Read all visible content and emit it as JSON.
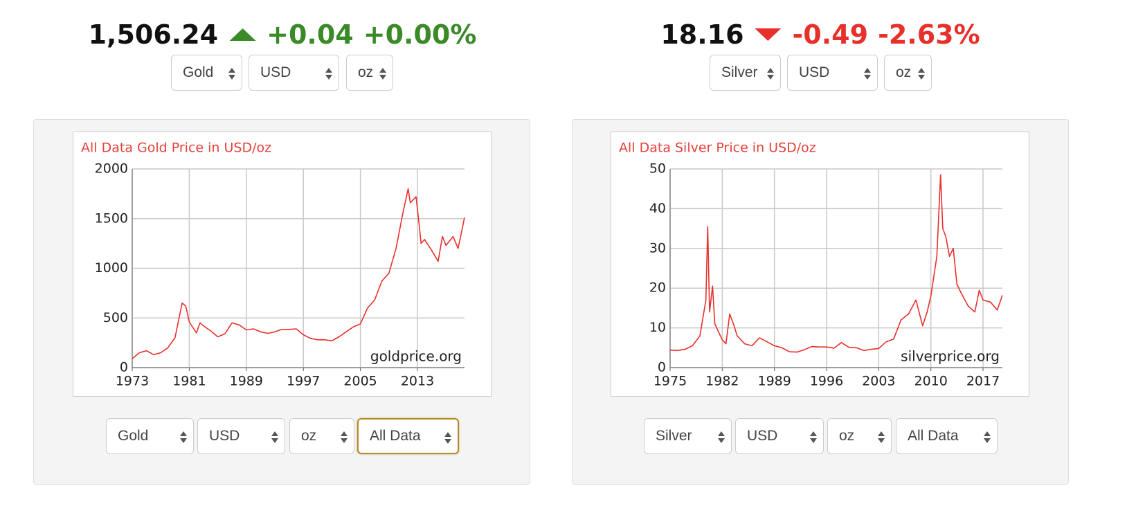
{
  "widgets": [
    {
      "price": "1,506.24",
      "change": "+0.04",
      "change_pct": "+0.00%",
      "trend_color": "#3a8a28",
      "selects": [
        "Gold",
        "USD",
        "oz"
      ],
      "controls": [
        "Gold",
        "USD",
        "oz",
        "All Data"
      ]
    },
    {
      "price": "18.16",
      "change": "-0.49",
      "change_pct": "-2.63%",
      "trend_color": "#e8302b",
      "selects": [
        "Silver",
        "USD",
        "oz"
      ],
      "controls": [
        "Silver",
        "USD",
        "oz",
        "All Data"
      ]
    }
  ],
  "chart_data": [
    {
      "type": "line",
      "title": "All Data Gold Price in USD/oz",
      "annotation": "goldprice.org",
      "color": "#e8302b",
      "grid": true,
      "x": [
        1973,
        1974,
        1975,
        1976,
        1977,
        1978,
        1979,
        1980,
        1980.5,
        1981,
        1982,
        1982.5,
        1983,
        1984,
        1985,
        1986,
        1987,
        1988,
        1989,
        1990,
        1991,
        1992,
        1993,
        1994,
        1995,
        1996,
        1997,
        1998,
        1999,
        2000,
        2001,
        2002,
        2003,
        2004,
        2005,
        2006,
        2007,
        2008,
        2009,
        2010,
        2011,
        2011.7,
        2012,
        2012.8,
        2013.3,
        2013.5,
        2014,
        2015,
        2015.9,
        2016.5,
        2017,
        2018,
        2018.7,
        2019,
        2019.6
      ],
      "values": [
        90,
        150,
        170,
        130,
        150,
        200,
        300,
        650,
        620,
        460,
        350,
        450,
        420,
        370,
        310,
        340,
        450,
        430,
        380,
        390,
        360,
        345,
        360,
        385,
        385,
        390,
        330,
        295,
        280,
        280,
        270,
        310,
        360,
        410,
        440,
        600,
        680,
        870,
        950,
        1200,
        1570,
        1800,
        1660,
        1720,
        1400,
        1250,
        1290,
        1180,
        1070,
        1320,
        1230,
        1320,
        1200,
        1300,
        1510
      ],
      "xlim": [
        1973,
        2019.6
      ],
      "xticks": [
        1973,
        1981,
        1989,
        1997,
        2005,
        2013
      ],
      "ylim": [
        0,
        2000
      ],
      "yticks": [
        0,
        500,
        1000,
        1500,
        2000
      ]
    },
    {
      "type": "line",
      "title": "All Data Silver Price in USD/oz",
      "annotation": "silverprice.org",
      "color": "#e8302b",
      "grid": true,
      "x": [
        1975,
        1976,
        1977,
        1978,
        1979,
        1979.8,
        1980.05,
        1980.3,
        1980.7,
        1981,
        1982,
        1982.5,
        1983,
        1983.5,
        1984,
        1985,
        1986,
        1987,
        1988,
        1989,
        1990,
        1991,
        1992,
        1993,
        1994,
        1995,
        1996,
        1997,
        1998,
        1999,
        2000,
        2001,
        2002,
        2003,
        2004,
        2005,
        2006,
        2007,
        2008,
        2008.9,
        2009.5,
        2010,
        2010.8,
        2011.3,
        2011.6,
        2012,
        2012.5,
        2013,
        2013.5,
        2014,
        2015,
        2015.9,
        2016.5,
        2017,
        2018,
        2018.9,
        2019.6
      ],
      "values": [
        4.4,
        4.3,
        4.6,
        5.5,
        8,
        17,
        35.5,
        14,
        20.5,
        11,
        7,
        6,
        13.5,
        11,
        8,
        6,
        5.5,
        7.5,
        6.5,
        5.5,
        5,
        4,
        3.9,
        4.5,
        5.3,
        5.2,
        5.2,
        4.9,
        6.3,
        5.1,
        5,
        4.3,
        4.6,
        4.8,
        6.5,
        7.2,
        12,
        13.5,
        17,
        10.5,
        14,
        18,
        28,
        48.5,
        35,
        33,
        28,
        30,
        21,
        19,
        15.5,
        14,
        19.5,
        17,
        16.5,
        14.5,
        18.2
      ],
      "xlim": [
        1975,
        2019.6
      ],
      "xticks": [
        1975,
        1982,
        1989,
        1996,
        2003,
        2010,
        2017
      ],
      "ylim": [
        0,
        50
      ],
      "yticks": [
        0,
        10,
        20,
        30,
        40,
        50
      ]
    }
  ]
}
